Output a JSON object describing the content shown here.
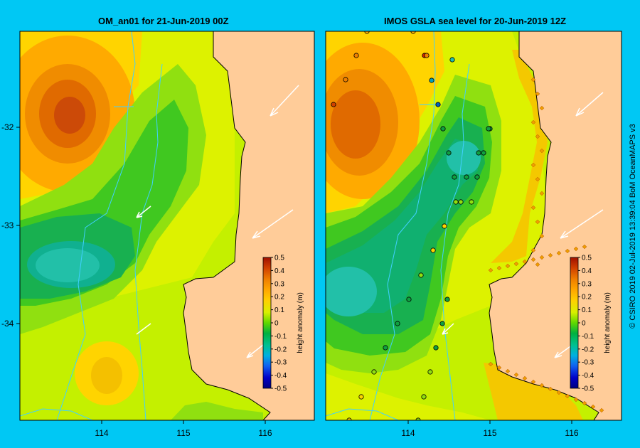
{
  "maps": [
    {
      "title": "OM_an01  for 21-Jun-2019 00Z",
      "x_ticks": [
        "114",
        "115",
        "116"
      ],
      "y_ticks": [
        "-32",
        "-33",
        "-34"
      ],
      "colorbar": {
        "label": "height anomaly (m)",
        "ticks": [
          "0.5",
          "0.4",
          "0.3",
          "0.2",
          "0.1",
          "0",
          "-0.1",
          "-0.2",
          "-0.3",
          "-0.4",
          "-0.5"
        ]
      }
    },
    {
      "title": "IMOS GSLA sea level  for 20-Jun-2019 12Z",
      "x_ticks": [
        "114",
        "115",
        "116"
      ],
      "colorbar": {
        "label": "height anomaly (m)",
        "ticks": [
          "0.5",
          "0.4",
          "0.3",
          "0.2",
          "0.1",
          "0",
          "-0.1",
          "-0.2",
          "-0.3",
          "-0.4",
          "-0.5"
        ]
      }
    }
  ],
  "credit": "© CSIRO 2019   02-Jul-2019 13:39:04 BoM OceanMAPS v3",
  "colors": {
    "background": "#00c8f4",
    "land": "#ffcc99",
    "high": "#c8480a",
    "mid_high": "#f0a000",
    "zero": "#b8f000",
    "low": "#10a040",
    "lowest": "#202080"
  }
}
